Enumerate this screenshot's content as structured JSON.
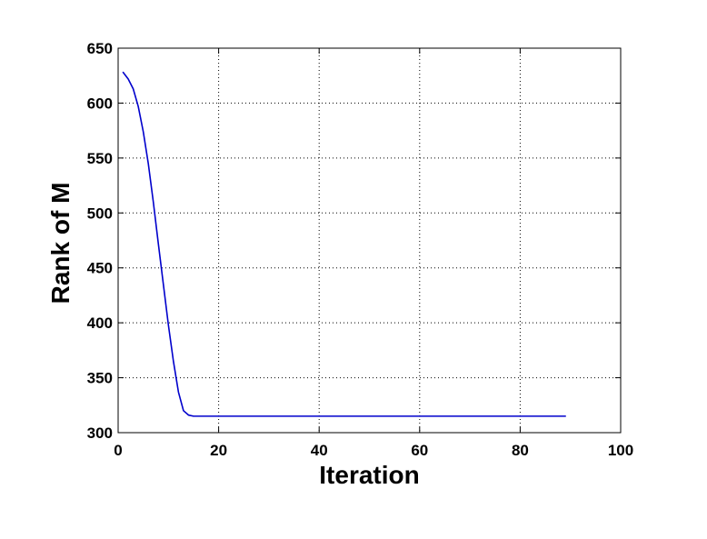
{
  "chart_data": {
    "type": "line",
    "title": "",
    "xlabel": "Iteration",
    "ylabel": "Rank of M",
    "xlim": [
      0,
      100
    ],
    "ylim": [
      300,
      650
    ],
    "xticks": [
      0,
      20,
      40,
      60,
      80,
      100
    ],
    "yticks": [
      300,
      350,
      400,
      450,
      500,
      550,
      600,
      650
    ],
    "xtick_labels": [
      "0",
      "20",
      "40",
      "60",
      "80",
      "100"
    ],
    "ytick_labels": [
      "300",
      "350",
      "400",
      "450",
      "500",
      "550",
      "600",
      "650"
    ],
    "grid": true,
    "grid_style": "dotted",
    "legend": "none",
    "series": [
      {
        "color": "#0000cc",
        "x": [
          1,
          2,
          3,
          4,
          5,
          6,
          7,
          8,
          9,
          10,
          11,
          12,
          13,
          14,
          15,
          20,
          30,
          40,
          50,
          60,
          70,
          80,
          89
        ],
        "y": [
          628,
          622,
          613,
          597,
          574,
          545,
          510,
          472,
          435,
          398,
          365,
          337,
          320,
          316,
          315,
          315,
          315,
          315,
          315,
          315,
          315,
          315,
          315
        ]
      }
    ]
  }
}
